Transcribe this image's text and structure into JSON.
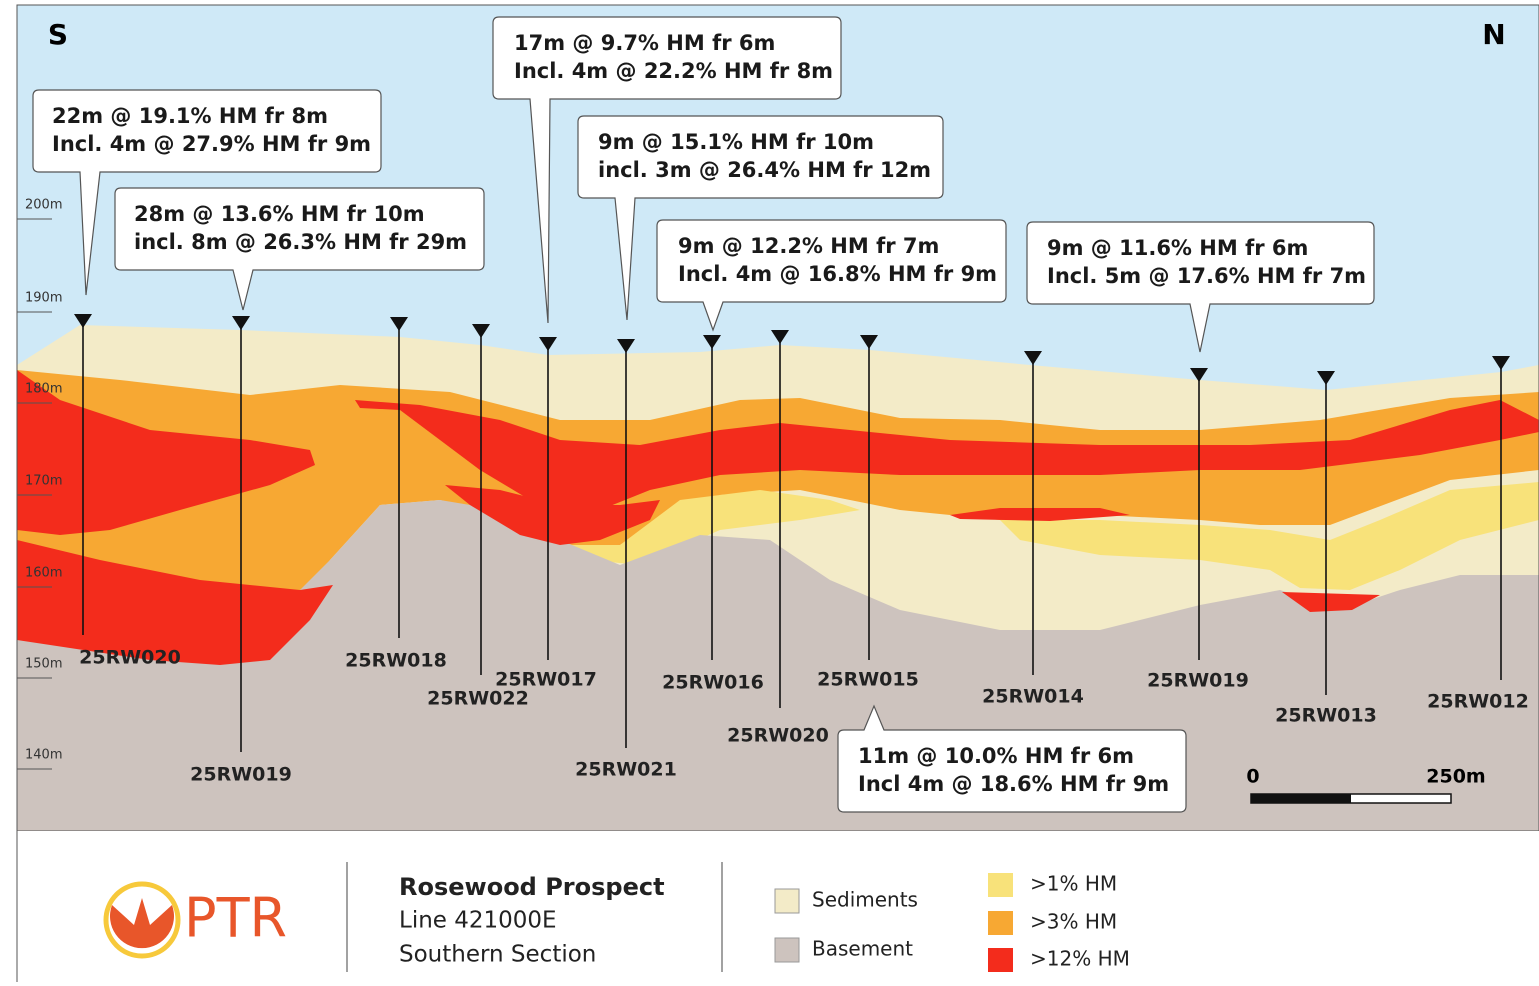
{
  "compass": {
    "south": "S",
    "north": "N"
  },
  "elevation_labels": [
    "200m",
    "190m",
    "180m",
    "170m",
    "160m",
    "150m",
    "140m"
  ],
  "drillholes": [
    {
      "label": "25RW020"
    },
    {
      "label": "25RW019"
    },
    {
      "label": "25RW018"
    },
    {
      "label": "25RW022"
    },
    {
      "label": "25RW017"
    },
    {
      "label": "25RW021"
    },
    {
      "label": "25RW016"
    },
    {
      "label": "25RW020"
    },
    {
      "label": "25RW015"
    },
    {
      "label": "25RW014"
    },
    {
      "label": "25RW019"
    },
    {
      "label": "25RW013"
    },
    {
      "label": "25RW012"
    }
  ],
  "callouts": [
    {
      "lines": [
        "22m @ 19.1% HM fr 8m",
        "Incl. 4m @ 27.9% HM fr 9m"
      ]
    },
    {
      "lines": [
        "28m @ 13.6% HM fr 10m",
        "incl. 8m @ 26.3% HM fr 29m"
      ]
    },
    {
      "lines": [
        "17m @ 9.7% HM fr 6m",
        "Incl. 4m @ 22.2% HM fr 8m"
      ]
    },
    {
      "lines": [
        "9m @ 15.1% HM fr 10m",
        "incl. 3m @ 26.4% HM fr 12m"
      ]
    },
    {
      "lines": [
        "9m @ 12.2% HM fr 7m",
        "Incl. 4m @ 16.8% HM fr 9m"
      ]
    },
    {
      "lines": [
        "9m @ 11.6% HM fr 6m",
        "Incl. 5m @ 17.6% HM fr 7m"
      ]
    },
    {
      "lines": [
        "11m @ 10.0% HM fr 6m",
        "Incl 4m @ 18.6% HM fr 9m"
      ]
    }
  ],
  "scale_bar": {
    "start": "0",
    "end": "250m"
  },
  "logo": "PTR",
  "title": {
    "name": "Rosewood Prospect",
    "line": "Line 421000E",
    "section": "Southern Section"
  },
  "legend": [
    {
      "label": "Sediments"
    },
    {
      "label": "Basement"
    },
    {
      "label": ">1% HM"
    },
    {
      "label": ">3% HM"
    },
    {
      "label": ">12% HM"
    }
  ]
}
